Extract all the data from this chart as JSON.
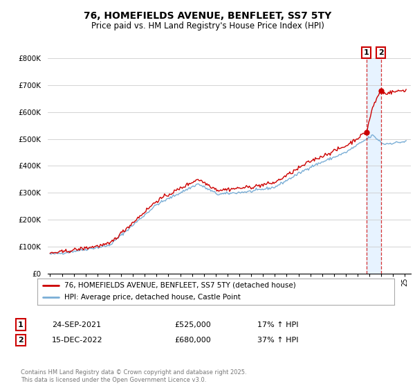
{
  "title": "76, HOMEFIELDS AVENUE, BENFLEET, SS7 5TY",
  "subtitle": "Price paid vs. HM Land Registry's House Price Index (HPI)",
  "legend_line1": "76, HOMEFIELDS AVENUE, BENFLEET, SS7 5TY (detached house)",
  "legend_line2": "HPI: Average price, detached house, Castle Point",
  "sale1_label": "1",
  "sale1_date": "24-SEP-2021",
  "sale1_price": "£525,000",
  "sale1_hpi": "17% ↑ HPI",
  "sale2_label": "2",
  "sale2_date": "15-DEC-2022",
  "sale2_price": "£680,000",
  "sale2_hpi": "37% ↑ HPI",
  "footer": "Contains HM Land Registry data © Crown copyright and database right 2025.\nThis data is licensed under the Open Government Licence v3.0.",
  "red_color": "#cc0000",
  "blue_color": "#7aaed6",
  "shade_color": "#ddeeff",
  "dashed_color": "#cc0000",
  "bg_color": "#ffffff",
  "grid_color": "#cccccc",
  "sale1_year": 2021.73,
  "sale2_year": 2022.96,
  "sale1_price_val": 525000,
  "sale2_price_val": 680000,
  "ylim": [
    0,
    800000
  ],
  "yticks": [
    0,
    100000,
    200000,
    300000,
    400000,
    500000,
    600000,
    700000,
    800000
  ],
  "ytick_labels": [
    "£0",
    "£100K",
    "£200K",
    "£300K",
    "£400K",
    "£500K",
    "£600K",
    "£700K",
    "£800K"
  ],
  "xmin": 1994.8,
  "xmax": 2025.5
}
